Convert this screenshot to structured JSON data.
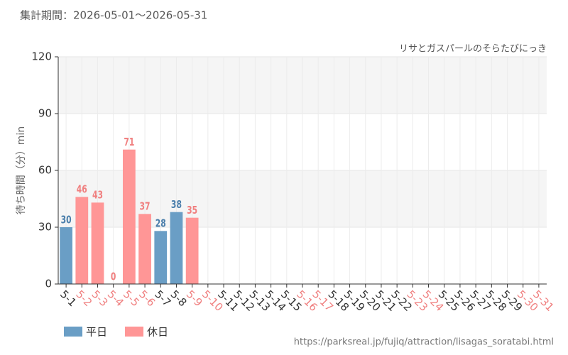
{
  "chart_data": {
    "type": "bar",
    "title": "集計期間：2026-05-01～2026-05-31",
    "subtitle": "リサとガスパールのそらたびにっき",
    "y_label": "待ち時間（分）min",
    "source": "https://parksreal.jp/fujiq/attraction/lisagas_soratabi.html",
    "categories": [
      "5-1",
      "5-2",
      "5-3",
      "5-4",
      "5-5",
      "5-6",
      "5-7",
      "5-8",
      "5-9",
      "5-10",
      "5-11",
      "5-12",
      "5-13",
      "5-14",
      "5-15",
      "5-16",
      "5-17",
      "5-18",
      "5-19",
      "5-20",
      "5-21",
      "5-22",
      "5-23",
      "5-24",
      "5-25",
      "5-26",
      "5-27",
      "5-28",
      "5-29",
      "5-30",
      "5-31"
    ],
    "category_colors": [
      "#333333",
      "#f08080",
      "#f08080",
      "#f08080",
      "#f08080",
      "#f08080",
      "#333333",
      "#333333",
      "#f08080",
      "#f08080",
      "#333333",
      "#333333",
      "#333333",
      "#333333",
      "#333333",
      "#f08080",
      "#f08080",
      "#333333",
      "#333333",
      "#333333",
      "#333333",
      "#333333",
      "#f08080",
      "#f08080",
      "#333333",
      "#333333",
      "#333333",
      "#333333",
      "#333333",
      "#f08080",
      "#f08080"
    ],
    "series": [
      {
        "name": "平日",
        "color": "#6a9ec5",
        "label_color": "#4a7eab",
        "values": [
          30,
          null,
          null,
          null,
          null,
          null,
          28,
          38,
          null,
          null,
          null,
          null,
          null,
          null,
          null,
          null,
          null,
          null,
          null,
          null,
          null,
          null,
          null,
          null,
          null,
          null,
          null,
          null,
          null,
          null,
          null
        ]
      },
      {
        "name": "休日",
        "color": "#ff9696",
        "label_color": "#f08080",
        "values": [
          null,
          46,
          43,
          0,
          71,
          37,
          null,
          null,
          35,
          null,
          null,
          null,
          null,
          null,
          null,
          null,
          null,
          null,
          null,
          null,
          null,
          null,
          null,
          null,
          null,
          null,
          null,
          null,
          null,
          null,
          null
        ]
      }
    ],
    "ylim": [
      0,
      120
    ],
    "yticks": [
      0,
      30,
      60,
      90,
      120
    ],
    "grid": true
  }
}
